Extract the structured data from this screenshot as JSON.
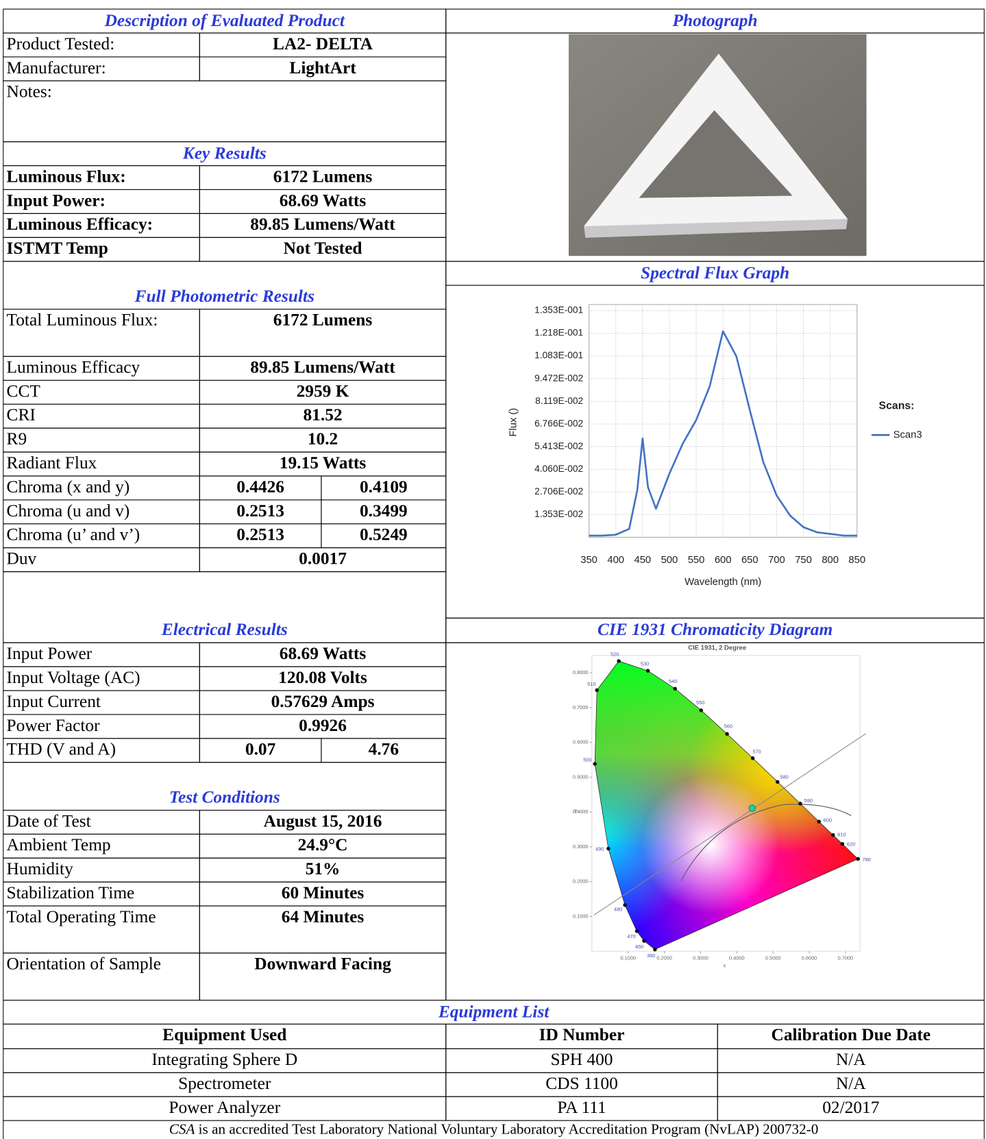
{
  "description": {
    "title": "Description of Evaluated Product",
    "rows": [
      [
        "Product Tested:",
        "LA2- DELTA"
      ],
      [
        "Manufacturer:",
        "LightArt"
      ]
    ],
    "notes": "Notes:"
  },
  "key_results": {
    "title": "Key Results",
    "rows": [
      [
        "Luminous Flux:",
        "6172 Lumens"
      ],
      [
        "Input Power:",
        "68.69 Watts"
      ],
      [
        "Luminous Efficacy:",
        "89.85 Lumens/Watt"
      ],
      [
        "ISTMT Temp",
        "Not Tested"
      ]
    ]
  },
  "photometric": {
    "title": "Full Photometric Results",
    "rows": [
      [
        "Total Luminous Flux:",
        "6172 Lumens"
      ],
      [
        "Luminous Efficacy",
        "89.85 Lumens/Watt"
      ],
      [
        "CCT",
        "2959 K"
      ],
      [
        "CRI",
        81.52
      ],
      [
        "R9",
        10.2
      ],
      [
        "Radiant Flux",
        "19.15 Watts"
      ],
      [
        "Chroma (x and y)",
        0.4426,
        0.4109
      ],
      [
        "Chroma (u and v)",
        0.2513,
        0.3499
      ],
      [
        "Chroma (u’ and v’)",
        0.2513,
        0.5249
      ],
      [
        "Duv",
        0.0017
      ]
    ]
  },
  "electrical": {
    "title": "Electrical Results",
    "rows": [
      [
        "Input Power",
        "68.69 Watts"
      ],
      [
        "Input Voltage (AC)",
        "120.08 Volts"
      ],
      [
        "Input Current",
        "0.57629 Amps"
      ],
      [
        "Power Factor",
        0.9926
      ],
      [
        "THD (V and A)",
        0.07,
        4.76
      ]
    ]
  },
  "test_conditions": {
    "title": "Test Conditions",
    "rows": [
      [
        "Date of Test",
        "August 15, 2016"
      ],
      [
        "Ambient Temp",
        "24.9°C"
      ],
      [
        "Humidity",
        "51%"
      ],
      [
        "Stabilization Time",
        "60 Minutes"
      ],
      [
        "Total Operating Time",
        "64 Minutes"
      ],
      [
        "Orientation of Sample",
        "Downward Facing"
      ]
    ]
  },
  "panels": {
    "photograph": "Photograph",
    "spectral": "Spectral Flux Graph",
    "cie": "CIE 1931 Chromaticity Diagram"
  },
  "chart_data": [
    {
      "type": "line",
      "xlabel": "Wavelength (nm)",
      "ylabel": "Flux ()",
      "legend_title": "Scans:",
      "x": [
        350,
        375,
        400,
        425,
        440,
        450,
        460,
        475,
        500,
        525,
        550,
        575,
        600,
        625,
        650,
        675,
        700,
        725,
        750,
        775,
        800,
        825,
        850
      ],
      "series": [
        {
          "name": "Scan3",
          "color": "#4472c4",
          "values": [
            0.001,
            0.001,
            0.0015,
            0.005,
            0.028,
            0.059,
            0.03,
            0.017,
            0.038,
            0.056,
            0.07,
            0.09,
            0.123,
            0.108,
            0.076,
            0.045,
            0.025,
            0.013,
            0.006,
            0.003,
            0.002,
            0.001,
            0.001
          ]
        }
      ],
      "xlim": [
        350,
        850
      ],
      "ylim": [
        0,
        0.139
      ],
      "xticks": [
        350,
        400,
        450,
        500,
        550,
        600,
        650,
        700,
        750,
        800,
        850
      ],
      "yticks": [
        {
          "value": 0.01353,
          "label": "1.353E-002"
        },
        {
          "value": 0.02706,
          "label": "2.706E-002"
        },
        {
          "value": 0.0406,
          "label": "4.060E-002"
        },
        {
          "value": 0.05413,
          "label": "5.413E-002"
        },
        {
          "value": 0.06766,
          "label": "6.766E-002"
        },
        {
          "value": 0.08119,
          "label": "8.119E-002"
        },
        {
          "value": 0.09472,
          "label": "9.472E-002"
        },
        {
          "value": 0.1083,
          "label": "1.083E-001"
        },
        {
          "value": 0.1218,
          "label": "1.218E-001"
        },
        {
          "value": 0.1353,
          "label": "1.353E-001"
        }
      ],
      "grid": true
    },
    {
      "type": "scatter",
      "title": "CIE 1931, 2 Degree",
      "xlabel": "x",
      "ylabel": "y",
      "xlim": [
        0,
        0.74
      ],
      "ylim": [
        0,
        0.85
      ],
      "xticks": [
        {
          "value": 0.1,
          "label": "0.1000"
        },
        {
          "value": 0.2,
          "label": "0.2000"
        },
        {
          "value": 0.3,
          "label": "0.3000"
        },
        {
          "value": 0.4,
          "label": "0.4000"
        },
        {
          "value": 0.5,
          "label": "0.5000"
        },
        {
          "value": 0.6,
          "label": "0.6000"
        },
        {
          "value": 0.7,
          "label": "0.7000"
        }
      ],
      "yticks": [
        {
          "value": 0.1,
          "label": "0.1000"
        },
        {
          "value": 0.2,
          "label": "0.2000"
        },
        {
          "value": 0.3,
          "label": "0.3000"
        },
        {
          "value": 0.4,
          "label": "0.4000"
        },
        {
          "value": 0.5,
          "label": "0.5000"
        },
        {
          "value": 0.6,
          "label": "0.6000"
        },
        {
          "value": 0.7,
          "label": "0.7000"
        },
        {
          "value": 0.8,
          "label": "0.8000"
        }
      ],
      "locus": {
        "labels": [
          "380",
          "460",
          "470",
          "480",
          "490",
          "500",
          "510",
          "520",
          "530",
          "540",
          "550",
          "560",
          "570",
          "580",
          "590",
          "600",
          "610",
          "620",
          "780"
        ],
        "x": [
          0.1741,
          0.144,
          0.1241,
          0.0913,
          0.0454,
          0.0082,
          0.0139,
          0.0743,
          0.1547,
          0.2296,
          0.3016,
          0.3731,
          0.4441,
          0.5125,
          0.5752,
          0.627,
          0.6658,
          0.6915,
          0.7347
        ],
        "y": [
          0.005,
          0.0297,
          0.0578,
          0.1327,
          0.295,
          0.5384,
          0.7502,
          0.8338,
          0.8059,
          0.7543,
          0.6923,
          0.6245,
          0.5547,
          0.4866,
          0.4242,
          0.3725,
          0.334,
          0.3083,
          0.2653
        ]
      }
    }
  ],
  "equipment": {
    "title": "Equipment List",
    "columns": [
      "Equipment Used",
      "ID Number",
      "Calibration Due Date"
    ],
    "rows": [
      [
        "Integrating Sphere D",
        "SPH 400",
        "N/A"
      ],
      [
        "Spectrometer",
        "CDS 1100",
        "N/A"
      ],
      [
        "Power Analyzer",
        "PA 111",
        "02/2017"
      ]
    ]
  },
  "footer": {
    "org": "CSA",
    "text": "is an accredited Test Laboratory National Voluntary Laboratory Accreditation Program (NvLAP) 200732-0"
  }
}
